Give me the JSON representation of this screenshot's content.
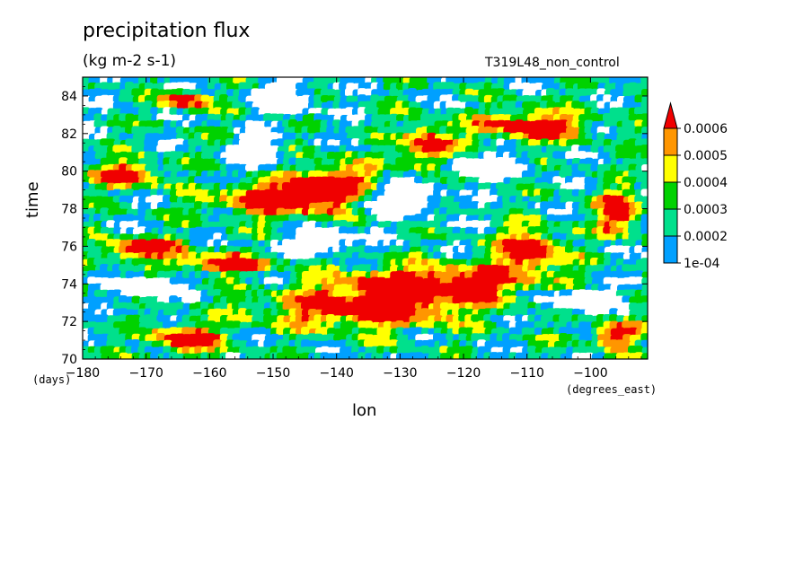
{
  "chart_data": {
    "type": "heatmap",
    "title": "precipitation flux",
    "units": "(kg m-2 s-1)",
    "run_label": "T319L48_non_control",
    "xlabel": "lon",
    "x_unit_label": "(degrees_east)",
    "ylabel": "time",
    "y_unit_label": "(days)",
    "xlim": [
      -180,
      -91
    ],
    "ylim": [
      70,
      85
    ],
    "x_ticks": [
      -180,
      -170,
      -160,
      -150,
      -140,
      -130,
      -120,
      -110,
      -100
    ],
    "x_tick_labels": [
      "−180",
      "−170",
      "−160",
      "−150",
      "−140",
      "−130",
      "−120",
      "−110",
      "−100"
    ],
    "y_ticks": [
      70,
      72,
      74,
      76,
      78,
      80,
      82,
      84
    ],
    "y_tick_labels": [
      "70",
      "72",
      "74",
      "76",
      "78",
      "80",
      "82",
      "84"
    ],
    "colorbar": {
      "levels": [
        0.0001,
        0.0002,
        0.0003,
        0.0004,
        0.0005,
        0.0006
      ],
      "level_labels": [
        "1e-04",
        "0.0002",
        "0.0003",
        "0.0004",
        "0.0005",
        "0.0006"
      ],
      "colors": [
        "#00a0ff",
        "#00e08c",
        "#00d200",
        "#ffff00",
        "#ff9600",
        "#f00000"
      ],
      "below_color": "#ffffff",
      "extend": "max"
    },
    "heavy_rain_bands": [
      {
        "lon_start": -178,
        "lon_end": -164,
        "time_start": 75.2,
        "time_end": 76.4
      },
      {
        "lon_start": -166,
        "lon_end": -150,
        "time_start": 74.5,
        "time_end": 75.5
      },
      {
        "lon_start": -160,
        "lon_end": -137,
        "time_start": 77.5,
        "time_end": 79.5
      },
      {
        "lon_start": -146,
        "lon_end": -133,
        "time_start": 78.0,
        "time_end": 80.5
      },
      {
        "lon_start": -130,
        "lon_end": -121,
        "time_start": 80.0,
        "time_end": 82.5
      },
      {
        "lon_start": -118,
        "lon_end": -100,
        "time_start": 81.5,
        "time_end": 83.2
      },
      {
        "lon_start": -152,
        "lon_end": -118,
        "time_start": 71.5,
        "time_end": 73.8
      },
      {
        "lon_start": -140,
        "lon_end": -108,
        "time_start": 73.0,
        "time_end": 75.0
      },
      {
        "lon_start": -115,
        "lon_end": -104,
        "time_start": 74.5,
        "time_end": 77.0
      },
      {
        "lon_start": -170,
        "lon_end": -158,
        "time_start": 70.2,
        "time_end": 71.8
      },
      {
        "lon_start": -178,
        "lon_end": -168,
        "time_start": 79.0,
        "time_end": 80.5
      },
      {
        "lon_start": -168,
        "lon_end": -160,
        "time_start": 83.2,
        "time_end": 84.2
      },
      {
        "lon_start": -100,
        "lon_end": -92,
        "time_start": 70.5,
        "time_end": 72.0
      },
      {
        "lon_start": -99,
        "lon_end": -92,
        "time_start": 76.5,
        "time_end": 79.0
      }
    ],
    "dry_regions": [
      {
        "lon_start": -140,
        "lon_end": -122,
        "time_start": 77.5,
        "time_end": 79.5
      },
      {
        "lon_start": -125,
        "lon_end": -110,
        "time_start": 79.5,
        "time_end": 81.0
      },
      {
        "lon_start": -157,
        "lon_end": -148,
        "time_start": 80.0,
        "time_end": 82.0
      },
      {
        "lon_start": -153,
        "lon_end": -143,
        "time_start": 82.8,
        "time_end": 84.8
      },
      {
        "lon_start": -175,
        "lon_end": -164,
        "time_start": 73.0,
        "time_end": 74.5
      },
      {
        "lon_start": -108,
        "lon_end": -95,
        "time_start": 72.3,
        "time_end": 73.8
      },
      {
        "lon_start": -148,
        "lon_end": -136,
        "time_start": 75.5,
        "time_end": 77.0
      }
    ]
  }
}
